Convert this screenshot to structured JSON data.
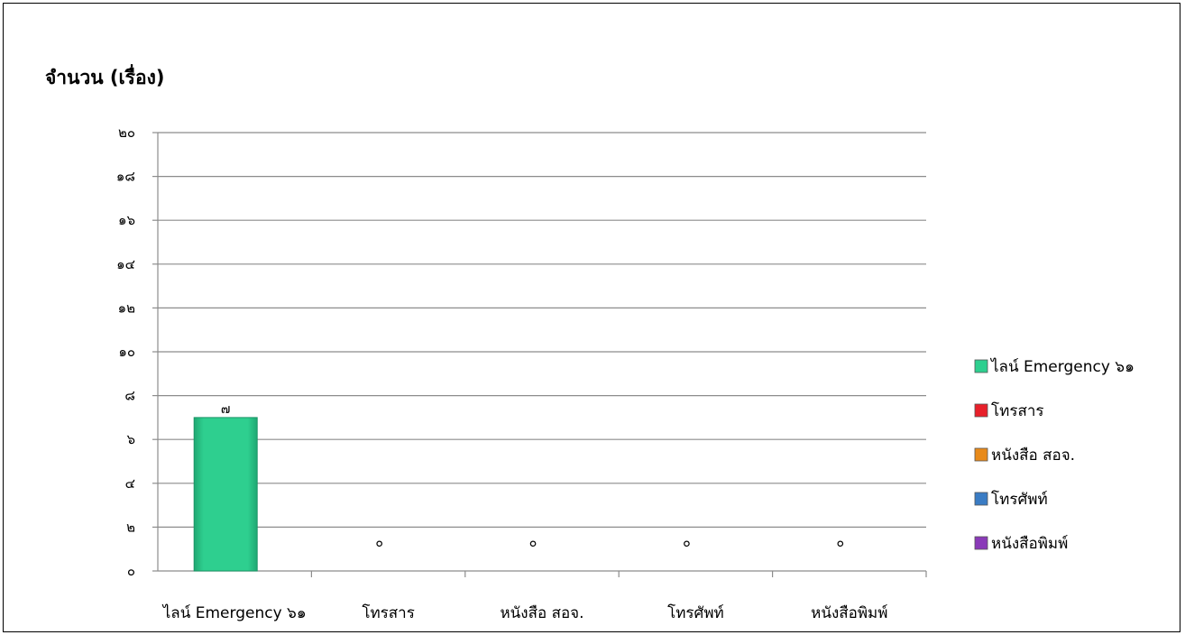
{
  "chart_data": {
    "type": "bar",
    "ylabel": "จำนวน (เรื่อง)",
    "categories": [
      "ไลน์ Emergency ๖๑",
      "โทรสาร",
      "หนังสือ สอจ.",
      "โทรศัพท์",
      "หนังสือพิมพ์"
    ],
    "values": [
      7,
      0,
      0,
      0,
      0
    ],
    "data_labels": [
      "๗",
      "๐",
      "๐",
      "๐",
      "๐"
    ],
    "yticks": [
      "๐",
      "๒",
      "๔",
      "๖",
      "๘",
      "๑๐",
      "๑๒",
      "๑๔",
      "๑๖",
      "๑๘",
      "๒๐"
    ],
    "ylim": [
      0,
      20
    ],
    "grid": true,
    "legend_position": "right",
    "legend": [
      {
        "label": "ไลน์ Emergency ๖๑",
        "color": "#2ecf8f"
      },
      {
        "label": "โทรสาร",
        "color": "#e8202a"
      },
      {
        "label": "หนังสือ สอจ.",
        "color": "#e88a1a"
      },
      {
        "label": "โทรศัพท์",
        "color": "#3a7cc4"
      },
      {
        "label": "หนังสือพิมพ์",
        "color": "#8a3ab8"
      }
    ],
    "colors": [
      "#2ecf8f",
      "#e8202a",
      "#e88a1a",
      "#3a7cc4",
      "#8a3ab8"
    ]
  }
}
